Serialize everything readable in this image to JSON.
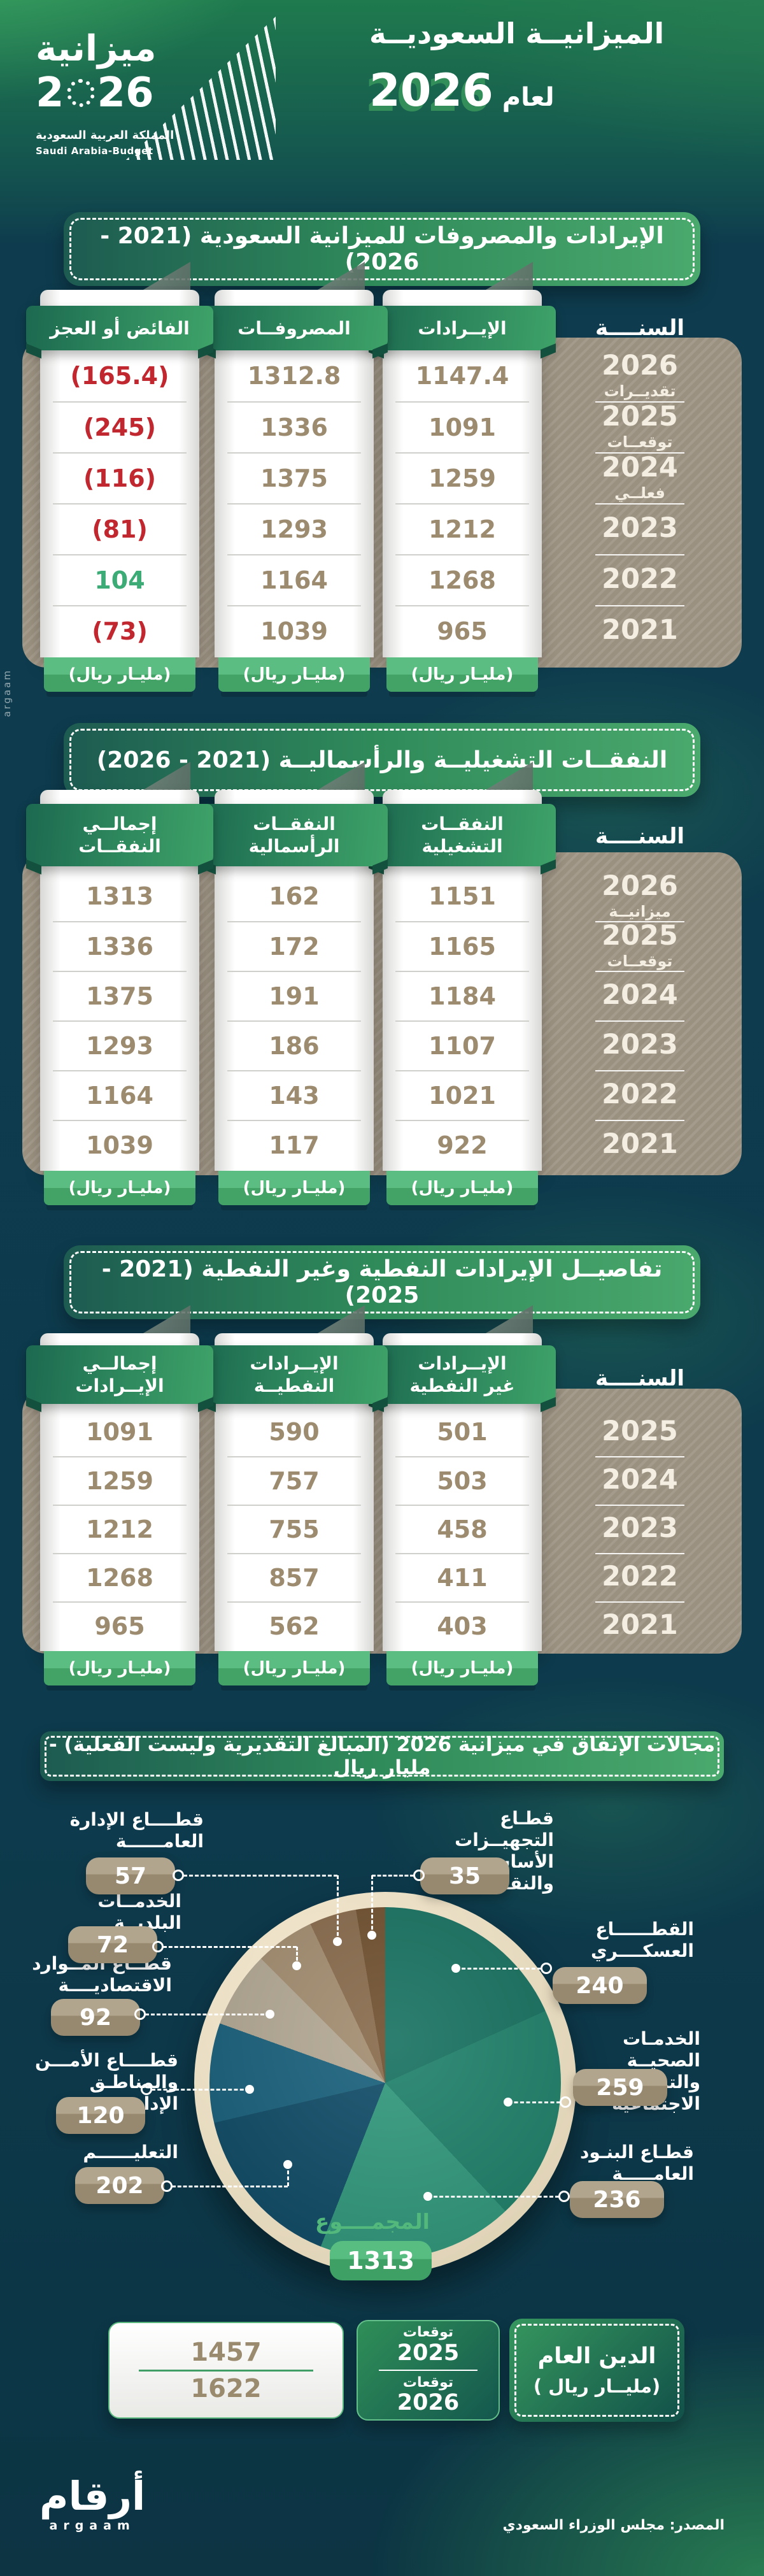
{
  "header": {
    "logo": {
      "word": "ميزانية",
      "year_left": "2",
      "year_right": "26",
      "country_ar": "المملكة العربية السعودية",
      "country_en": "Saudi Arabia-Budget"
    },
    "title_line1": "الميزانيــة السعوديــة",
    "title_line2_prefix": "لعام",
    "title_line2_year": "2026"
  },
  "tables": [
    {
      "title": "الإيرادات والمصروفات للميزانية السعودية (2021 - 2026)",
      "year_header": "السنــــة",
      "unit_label": "(مليـار ريال)",
      "years": [
        [
          "2026",
          "تقديــرات"
        ],
        [
          "2025",
          "توقعــات"
        ],
        [
          "2024",
          "فعلــي"
        ],
        [
          "2023",
          ""
        ],
        [
          "2022",
          ""
        ],
        [
          "2021",
          ""
        ]
      ],
      "columns": [
        {
          "label": "الإيــرادات",
          "values": [
            "1147.4",
            "1091",
            "1259",
            "1212",
            "1268",
            "965"
          ]
        },
        {
          "label": "المصروفــات",
          "values": [
            "1312.8",
            "1336",
            "1375",
            "1293",
            "1164",
            "1039"
          ]
        },
        {
          "label": "الفائض أو العجز",
          "values": [
            "(165.4)",
            "(245)",
            "(116)",
            "(81)",
            "104",
            "(73)"
          ],
          "flags": [
            "neg",
            "neg",
            "neg",
            "neg",
            "pos",
            "neg"
          ]
        }
      ]
    },
    {
      "title": "النفقــات التشغيليــة والرأسماليــة (2021 - 2026)",
      "year_header": "السنــــة",
      "unit_label": "(مليـار ريال)",
      "years": [
        [
          "2026",
          "ميزانيــة"
        ],
        [
          "2025",
          "توقعــات"
        ],
        [
          "2024",
          ""
        ],
        [
          "2023",
          ""
        ],
        [
          "2022",
          ""
        ],
        [
          "2021",
          ""
        ]
      ],
      "columns": [
        {
          "label": "النفقــات",
          "label2": "التشغيلية",
          "values": [
            "1151",
            "1165",
            "1184",
            "1107",
            "1021",
            "922"
          ]
        },
        {
          "label": "النفقــات",
          "label2": "الرأسمالية",
          "values": [
            "162",
            "172",
            "191",
            "186",
            "143",
            "117"
          ]
        },
        {
          "label": "إجمالــي",
          "label2": "النفقــات",
          "values": [
            "1313",
            "1336",
            "1375",
            "1293",
            "1164",
            "1039"
          ]
        }
      ]
    },
    {
      "title": "تفاصيــل الإيرادات النفطية وغير النفطية (2021 - 2025)",
      "year_header": "السنــــة",
      "unit_label": "(مليـار ريال)",
      "years": [
        [
          "2025",
          ""
        ],
        [
          "2024",
          ""
        ],
        [
          "2023",
          ""
        ],
        [
          "2022",
          ""
        ],
        [
          "2021",
          ""
        ]
      ],
      "columns": [
        {
          "label": "الإيــرادات",
          "label2": "غير النفطية",
          "values": [
            "501",
            "503",
            "458",
            "411",
            "403"
          ]
        },
        {
          "label": "الإيــرادات",
          "label2": "النفطيــة",
          "values": [
            "590",
            "757",
            "755",
            "857",
            "562"
          ]
        },
        {
          "label": "إجمالــي",
          "label2": "الإيــرادات",
          "values": [
            "1091",
            "1259",
            "1212",
            "1268",
            "965"
          ]
        }
      ]
    }
  ],
  "spending": {
    "title": "مجالات الإنفاق في ميزانية 2026 (المبالغ التقديرية وليست الفعلية) - مليار ريال",
    "total_label": "المجمــــوع",
    "total_value": "1313",
    "slices": [
      {
        "label_lines": [
          "القطــــــاع",
          "العسكــــري"
        ],
        "value": 240,
        "color": "#15705e"
      },
      {
        "label_lines": [
          "الخدمـات الصحيــة",
          "والتنمية الاجتماعية"
        ],
        "value": 259,
        "color": "#1d8069"
      },
      {
        "label_lines": [
          "قطـاع البنـود",
          "العامـــــة"
        ],
        "value": 236,
        "color": "#2f987b"
      },
      {
        "label_lines": [
          "التعليــــــم"
        ],
        "value": 202,
        "color": "#0e4a66"
      },
      {
        "label_lines": [
          "قطــــاع الأمـــن",
          "والمناطـق الإداريـة"
        ],
        "value": 120,
        "color": "#175f7b"
      },
      {
        "label_lines": [
          "قطــاع المــوارد",
          "الاقتصاديــــة"
        ],
        "value": 92,
        "color": "#b3a893"
      },
      {
        "label_lines": [
          "الخدمــات البلديــة"
        ],
        "value": 72,
        "color": "#a28c6e"
      },
      {
        "label_lines": [
          "قطــــاع الإدارة",
          "العامــــــة"
        ],
        "value": 57,
        "color": "#87694a"
      },
      {
        "label_lines": [
          "قطـاع التجهيــزات",
          "الأساسيــة والنقـل"
        ],
        "value": 35,
        "color": "#6e4e2c"
      }
    ]
  },
  "debt": {
    "values": [
      "1457",
      "1622"
    ],
    "year_rows": [
      [
        "توقعات",
        "2025"
      ],
      [
        "توقعات",
        "2026"
      ]
    ],
    "label_line1": "الدين العام",
    "label_line2": "(مليــار ريال )"
  },
  "footer": {
    "source": "المصدر: مجلس الوزراء السعودي",
    "logo_ar": "أرقام",
    "logo_en": "argaam",
    "watermark": "argaam"
  },
  "chart_data": [
    {
      "type": "table",
      "title": "الإيرادات والمصروفات للميزانية السعودية (2021 - 2026)",
      "unit": "مليار ريال",
      "categories": [
        "2026 تقديرات",
        "2025 توقعات",
        "2024 فعلي",
        "2023",
        "2022",
        "2021"
      ],
      "series": [
        {
          "name": "الإيرادات",
          "values": [
            1147.4,
            1091,
            1259,
            1212,
            1268,
            965
          ]
        },
        {
          "name": "المصروفات",
          "values": [
            1312.8,
            1336,
            1375,
            1293,
            1164,
            1039
          ]
        },
        {
          "name": "الفائض أو العجز",
          "values": [
            -165.4,
            -245,
            -116,
            -81,
            104,
            -73
          ]
        }
      ]
    },
    {
      "type": "table",
      "title": "النفقات التشغيلية والرأسمالية (2021 - 2026)",
      "unit": "مليار ريال",
      "categories": [
        "2026 ميزانية",
        "2025 توقعات",
        "2024",
        "2023",
        "2022",
        "2021"
      ],
      "series": [
        {
          "name": "النفقات التشغيلية",
          "values": [
            1151,
            1165,
            1184,
            1107,
            1021,
            922
          ]
        },
        {
          "name": "النفقات الرأسمالية",
          "values": [
            162,
            172,
            191,
            186,
            143,
            117
          ]
        },
        {
          "name": "إجمالي النفقات",
          "values": [
            1313,
            1336,
            1375,
            1293,
            1164,
            1039
          ]
        }
      ]
    },
    {
      "type": "table",
      "title": "تفاصيل الإيرادات النفطية وغير النفطية (2021 - 2025)",
      "unit": "مليار ريال",
      "categories": [
        "2025",
        "2024",
        "2023",
        "2022",
        "2021"
      ],
      "series": [
        {
          "name": "الإيرادات غير النفطية",
          "values": [
            501,
            503,
            458,
            411,
            403
          ]
        },
        {
          "name": "الإيرادات النفطية",
          "values": [
            590,
            757,
            755,
            857,
            562
          ]
        },
        {
          "name": "إجمالي الإيرادات",
          "values": [
            1091,
            1259,
            1212,
            1268,
            965
          ]
        }
      ]
    },
    {
      "type": "pie",
      "title": "مجالات الإنفاق في ميزانية 2026 (المبالغ التقديرية وليست الفعلية)",
      "unit": "مليار ريال",
      "labels": [
        "القطاع العسكري",
        "الخدمات الصحية والتنمية الاجتماعية",
        "قطاع البنود العامة",
        "التعليم",
        "قطاع الأمن والمناطق الإدارية",
        "قطاع الموارد الاقتصادية",
        "الخدمات البلدية",
        "قطاع الإدارة العامة",
        "قطاع التجهيزات الأساسية والنقل"
      ],
      "values": [
        240,
        259,
        236,
        202,
        120,
        92,
        72,
        57,
        35
      ],
      "total": 1313,
      "legend_position": "around"
    },
    {
      "type": "table",
      "title": "الدين العام (مليار ريال)",
      "categories": [
        "توقعات 2025",
        "توقعات 2026"
      ],
      "values": [
        1457,
        1622
      ]
    }
  ]
}
